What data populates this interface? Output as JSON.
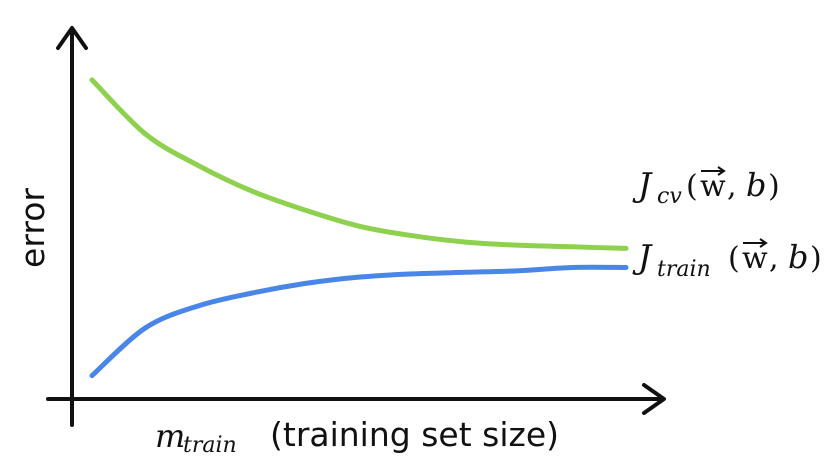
{
  "chart_data": {
    "type": "line",
    "xlabel": {
      "var": "m",
      "sub": "train",
      "text": "(training set size)"
    },
    "ylabel": "error",
    "grid": false,
    "legend": "right-end-labels",
    "x": [
      0,
      1,
      2,
      3,
      4,
      5,
      6,
      7,
      8,
      9,
      10
    ],
    "series": [
      {
        "name": "J_cv(w,b)",
        "label": {
          "J": "J",
          "sub": "cv",
          "args_w": "w",
          "args_b": "b"
        },
        "color": "#8dd14f",
        "values": [
          0.95,
          0.78,
          0.68,
          0.6,
          0.54,
          0.49,
          0.46,
          0.44,
          0.43,
          0.425,
          0.42
        ]
      },
      {
        "name": "J_train(w,b)",
        "label": {
          "J": "J",
          "sub": "train",
          "args_w": "w",
          "args_b": "b"
        },
        "color": "#4a86e8",
        "values": [
          0.02,
          0.17,
          0.24,
          0.28,
          0.31,
          0.33,
          0.34,
          0.345,
          0.35,
          0.36,
          0.36
        ]
      }
    ],
    "xlim": [
      0,
      10
    ],
    "ylim": [
      0,
      1
    ]
  }
}
